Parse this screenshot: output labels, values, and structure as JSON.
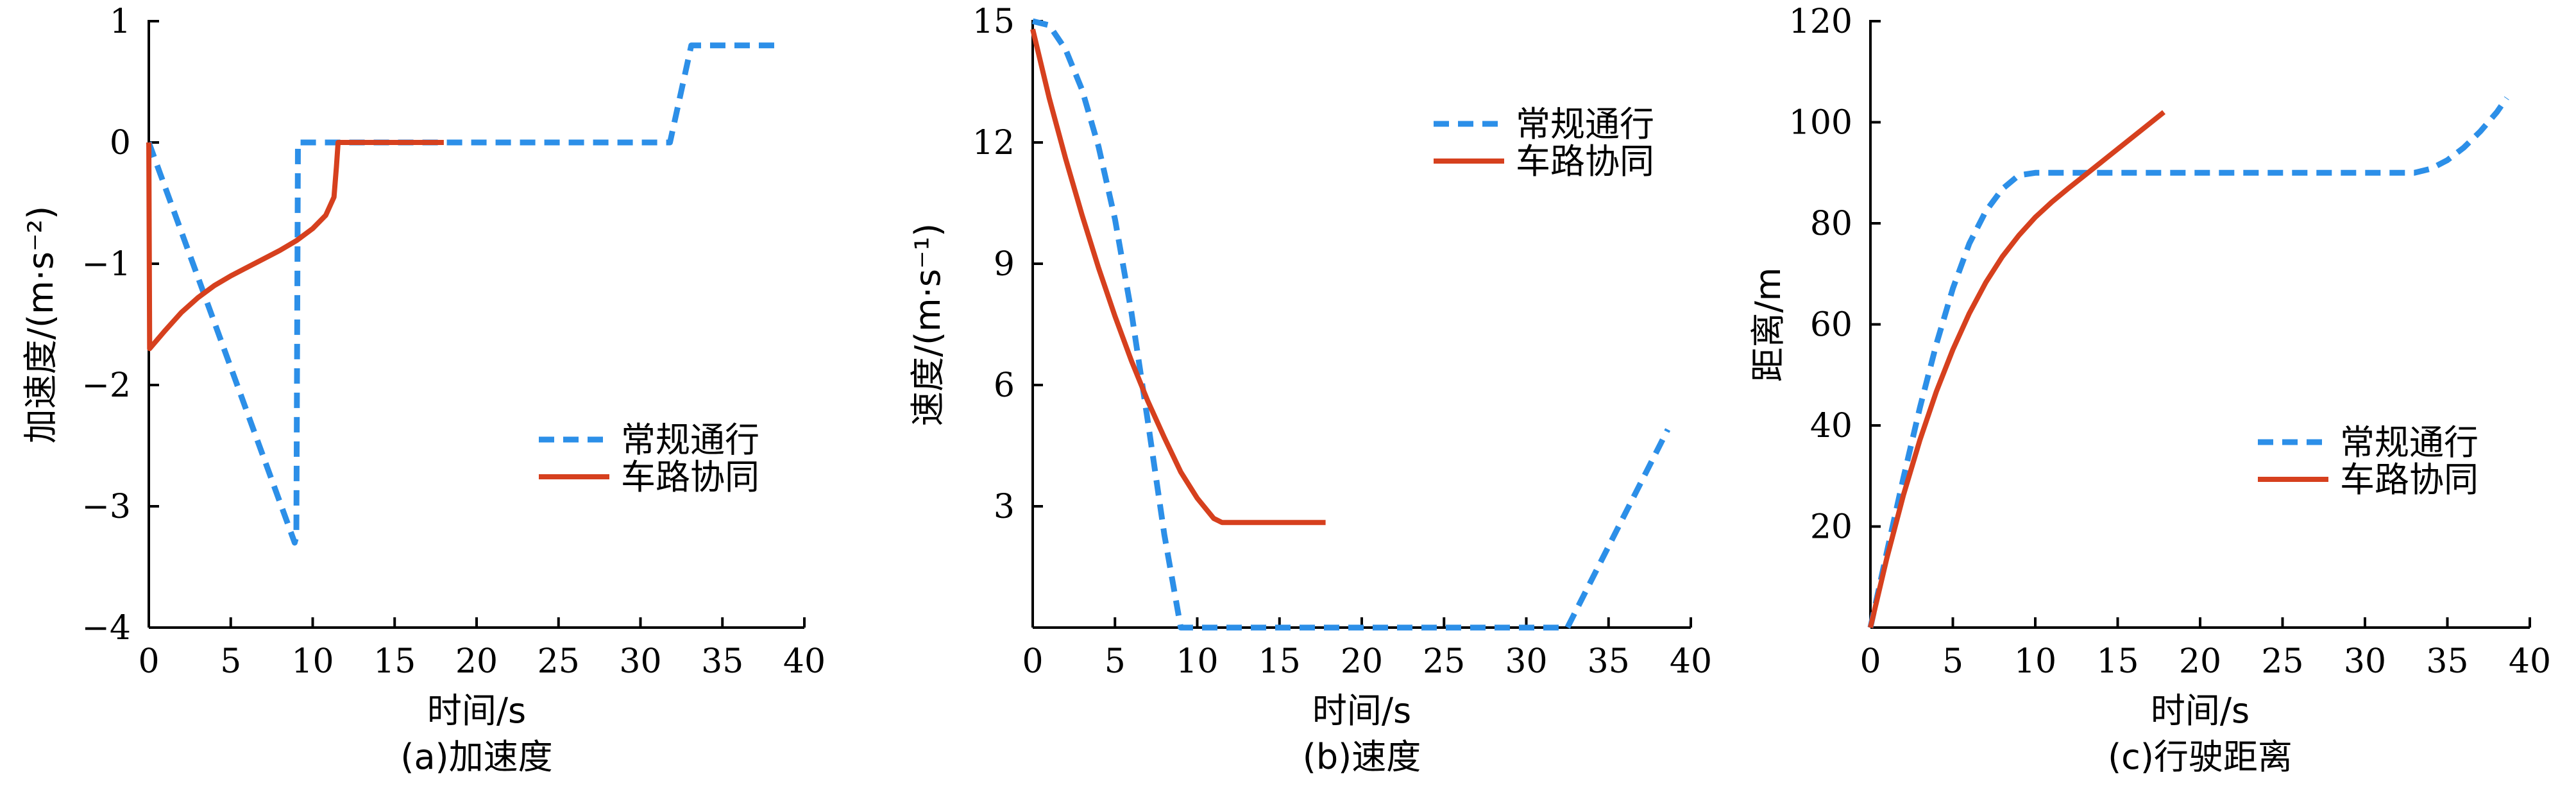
{
  "chart_data": [
    {
      "type": "line",
      "caption": "(a)加速度",
      "xlabel": "时间/s",
      "ylabel": "加速度/(m·s⁻²)",
      "xlim": [
        0,
        40
      ],
      "ylim": [
        -4,
        1
      ],
      "xticks": [
        0,
        5,
        10,
        15,
        20,
        25,
        30,
        35,
        40
      ],
      "yticks": [
        -4,
        -3,
        -2,
        -1,
        0,
        1
      ],
      "xtick_labels": [
        "0",
        "5",
        "10",
        "15",
        "20",
        "25",
        "30",
        "35",
        "40"
      ],
      "ytick_labels": [
        "−4",
        "−3",
        "−2",
        "−1",
        "0",
        "1"
      ],
      "legend_position": "right-middle",
      "series": [
        {
          "name": "常规通行",
          "style": "dashed",
          "color": "#2C8FE8",
          "points": [
            [
              0,
              0
            ],
            [
              8.9,
              -3.3
            ],
            [
              9.0,
              -3.25
            ],
            [
              9.1,
              0
            ],
            [
              31.8,
              0
            ],
            [
              33.1,
              0.8
            ],
            [
              38.6,
              0.8
            ]
          ]
        },
        {
          "name": "车路协同",
          "style": "solid",
          "color": "#D6401E",
          "points": [
            [
              0,
              0
            ],
            [
              0.05,
              -1.7
            ],
            [
              1,
              -1.55
            ],
            [
              2,
              -1.4
            ],
            [
              3,
              -1.28
            ],
            [
              4,
              -1.18
            ],
            [
              5,
              -1.1
            ],
            [
              6,
              -1.03
            ],
            [
              7,
              -0.96
            ],
            [
              8,
              -0.89
            ],
            [
              9,
              -0.81
            ],
            [
              10,
              -0.71
            ],
            [
              10.8,
              -0.6
            ],
            [
              11.3,
              -0.45
            ],
            [
              11.45,
              -0.2
            ],
            [
              11.55,
              0
            ],
            [
              18,
              0
            ]
          ]
        }
      ]
    },
    {
      "type": "line",
      "caption": "(b)速度",
      "xlabel": "时间/s",
      "ylabel": "速度/(m·s⁻¹)",
      "xlim": [
        0,
        40
      ],
      "ylim": [
        0,
        15
      ],
      "xticks": [
        0,
        5,
        10,
        15,
        20,
        25,
        30,
        35,
        40
      ],
      "yticks": [
        3,
        6,
        9,
        12,
        15
      ],
      "xtick_labels": [
        "0",
        "5",
        "10",
        "15",
        "20",
        "25",
        "30",
        "35",
        "40"
      ],
      "ytick_labels": [
        "3",
        "6",
        "9",
        "12",
        "15"
      ],
      "legend_position": "top-right",
      "series": [
        {
          "name": "常规通行",
          "style": "dashed",
          "color": "#2C8FE8",
          "points": [
            [
              0,
              15
            ],
            [
              1,
              14.9
            ],
            [
              2,
              14.3
            ],
            [
              3,
              13.3
            ],
            [
              4,
              11.9
            ],
            [
              5,
              10.1
            ],
            [
              6,
              7.8
            ],
            [
              7,
              5.1
            ],
            [
              8,
              2.3
            ],
            [
              9,
              0
            ],
            [
              32.5,
              0
            ],
            [
              38.6,
              4.9
            ]
          ]
        },
        {
          "name": "车路协同",
          "style": "solid",
          "color": "#D6401E",
          "points": [
            [
              0,
              14.8
            ],
            [
              1,
              13.1
            ],
            [
              2,
              11.6
            ],
            [
              3,
              10.2
            ],
            [
              4,
              8.9
            ],
            [
              5,
              7.7
            ],
            [
              6,
              6.6
            ],
            [
              7,
              5.6
            ],
            [
              8,
              4.7
            ],
            [
              9,
              3.85
            ],
            [
              10,
              3.2
            ],
            [
              11,
              2.7
            ],
            [
              11.5,
              2.6
            ],
            [
              17.8,
              2.6
            ]
          ]
        }
      ]
    },
    {
      "type": "line",
      "caption": "(c)行驶距离",
      "xlabel": "时间/s",
      "ylabel": "距离/m",
      "xlim": [
        0,
        40
      ],
      "ylim": [
        0,
        120
      ],
      "xticks": [
        0,
        5,
        10,
        15,
        20,
        25,
        30,
        35,
        40
      ],
      "yticks": [
        20,
        40,
        60,
        80,
        100,
        120
      ],
      "xtick_labels": [
        "0",
        "5",
        "10",
        "15",
        "20",
        "25",
        "30",
        "35",
        "40"
      ],
      "ytick_labels": [
        "20",
        "40",
        "60",
        "80",
        "100",
        "120"
      ],
      "legend_position": "right-middle",
      "series": [
        {
          "name": "常规通行",
          "style": "dashed",
          "color": "#2C8FE8",
          "points": [
            [
              0,
              0
            ],
            [
              1,
              15
            ],
            [
              2,
              29.6
            ],
            [
              3,
              43.5
            ],
            [
              4,
              56.1
            ],
            [
              5,
              67.1
            ],
            [
              6,
              76
            ],
            [
              7,
              82.4
            ],
            [
              8,
              86.8
            ],
            [
              9,
              89.5
            ],
            [
              10,
              90
            ],
            [
              33,
              90
            ],
            [
              34,
              90.8
            ],
            [
              35,
              92.5
            ],
            [
              36,
              95
            ],
            [
              37,
              98.2
            ],
            [
              38,
              102
            ],
            [
              38.6,
              104.8
            ]
          ]
        },
        {
          "name": "车路协同",
          "style": "solid",
          "color": "#D6401E",
          "points": [
            [
              0,
              0
            ],
            [
              1,
              13.8
            ],
            [
              2,
              26.2
            ],
            [
              3,
              37.1
            ],
            [
              4,
              46.7
            ],
            [
              5,
              55
            ],
            [
              6,
              62.2
            ],
            [
              7,
              68.3
            ],
            [
              8,
              73.4
            ],
            [
              9,
              77.6
            ],
            [
              10,
              81.2
            ],
            [
              11,
              84.2
            ],
            [
              12,
              86.9
            ],
            [
              13,
              89.5
            ],
            [
              14,
              92.1
            ],
            [
              15,
              94.7
            ],
            [
              16,
              97.3
            ],
            [
              17,
              99.9
            ],
            [
              17.8,
              102
            ]
          ]
        }
      ]
    }
  ]
}
